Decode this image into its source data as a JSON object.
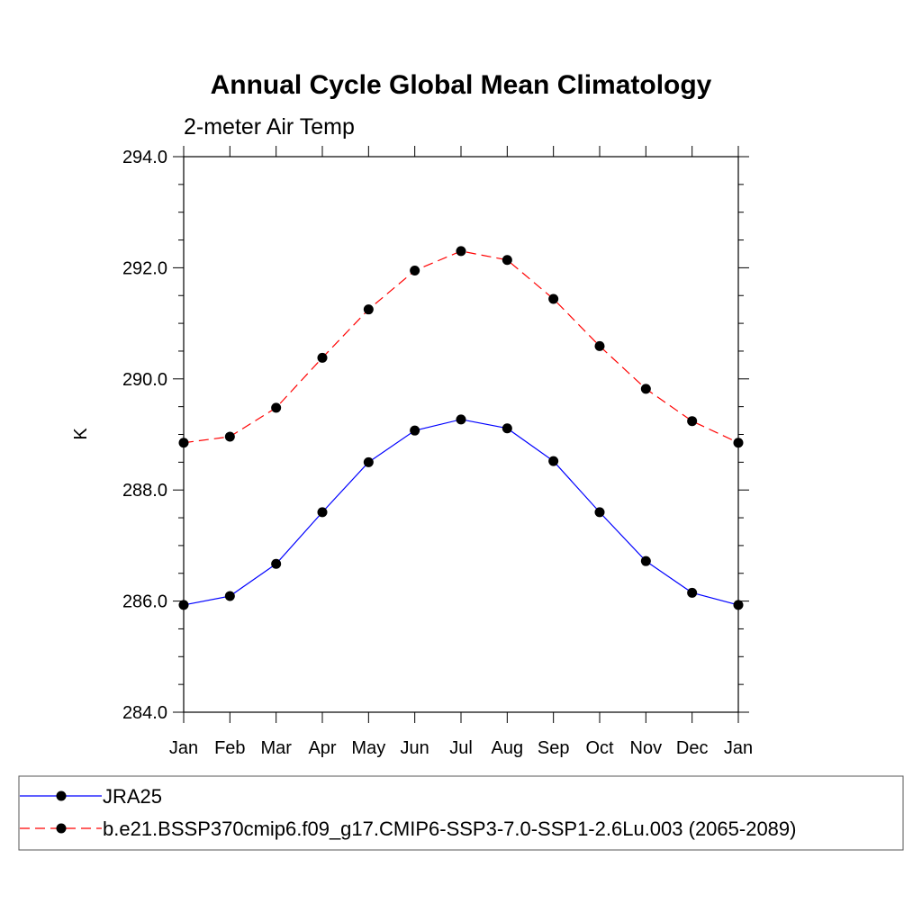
{
  "chart_data": {
    "type": "line",
    "title": "Annual Cycle Global Mean Climatology",
    "subtitle": "2-meter Air Temp",
    "xlabel": "",
    "ylabel": "K",
    "categories": [
      "Jan",
      "Feb",
      "Mar",
      "Apr",
      "May",
      "Jun",
      "Jul",
      "Aug",
      "Sep",
      "Oct",
      "Nov",
      "Dec",
      "Jan"
    ],
    "ylim": [
      284.0,
      294.0
    ],
    "yticks": [
      "284.0",
      "286.0",
      "288.0",
      "290.0",
      "292.0",
      "294.0"
    ],
    "grid": false,
    "legend_position": "bottom",
    "series": [
      {
        "name": "JRA25",
        "color": "#0000ff",
        "dash": "solid",
        "marker": "filled-circle",
        "values": [
          285.93,
          286.09,
          286.67,
          287.6,
          288.5,
          289.07,
          289.27,
          289.11,
          288.52,
          287.6,
          286.72,
          286.15,
          285.93
        ]
      },
      {
        "name": "b.e21.BSSP370cmip6.f09_g17.CMIP6-SSP3-7.0-SSP1-2.6Lu.003 (2065-2089)",
        "color": "#ff0000",
        "dash": "dashed",
        "marker": "filled-circle",
        "values": [
          288.85,
          288.96,
          289.48,
          290.38,
          291.25,
          291.95,
          292.3,
          292.14,
          291.44,
          290.59,
          289.82,
          289.24,
          288.85
        ]
      }
    ]
  }
}
